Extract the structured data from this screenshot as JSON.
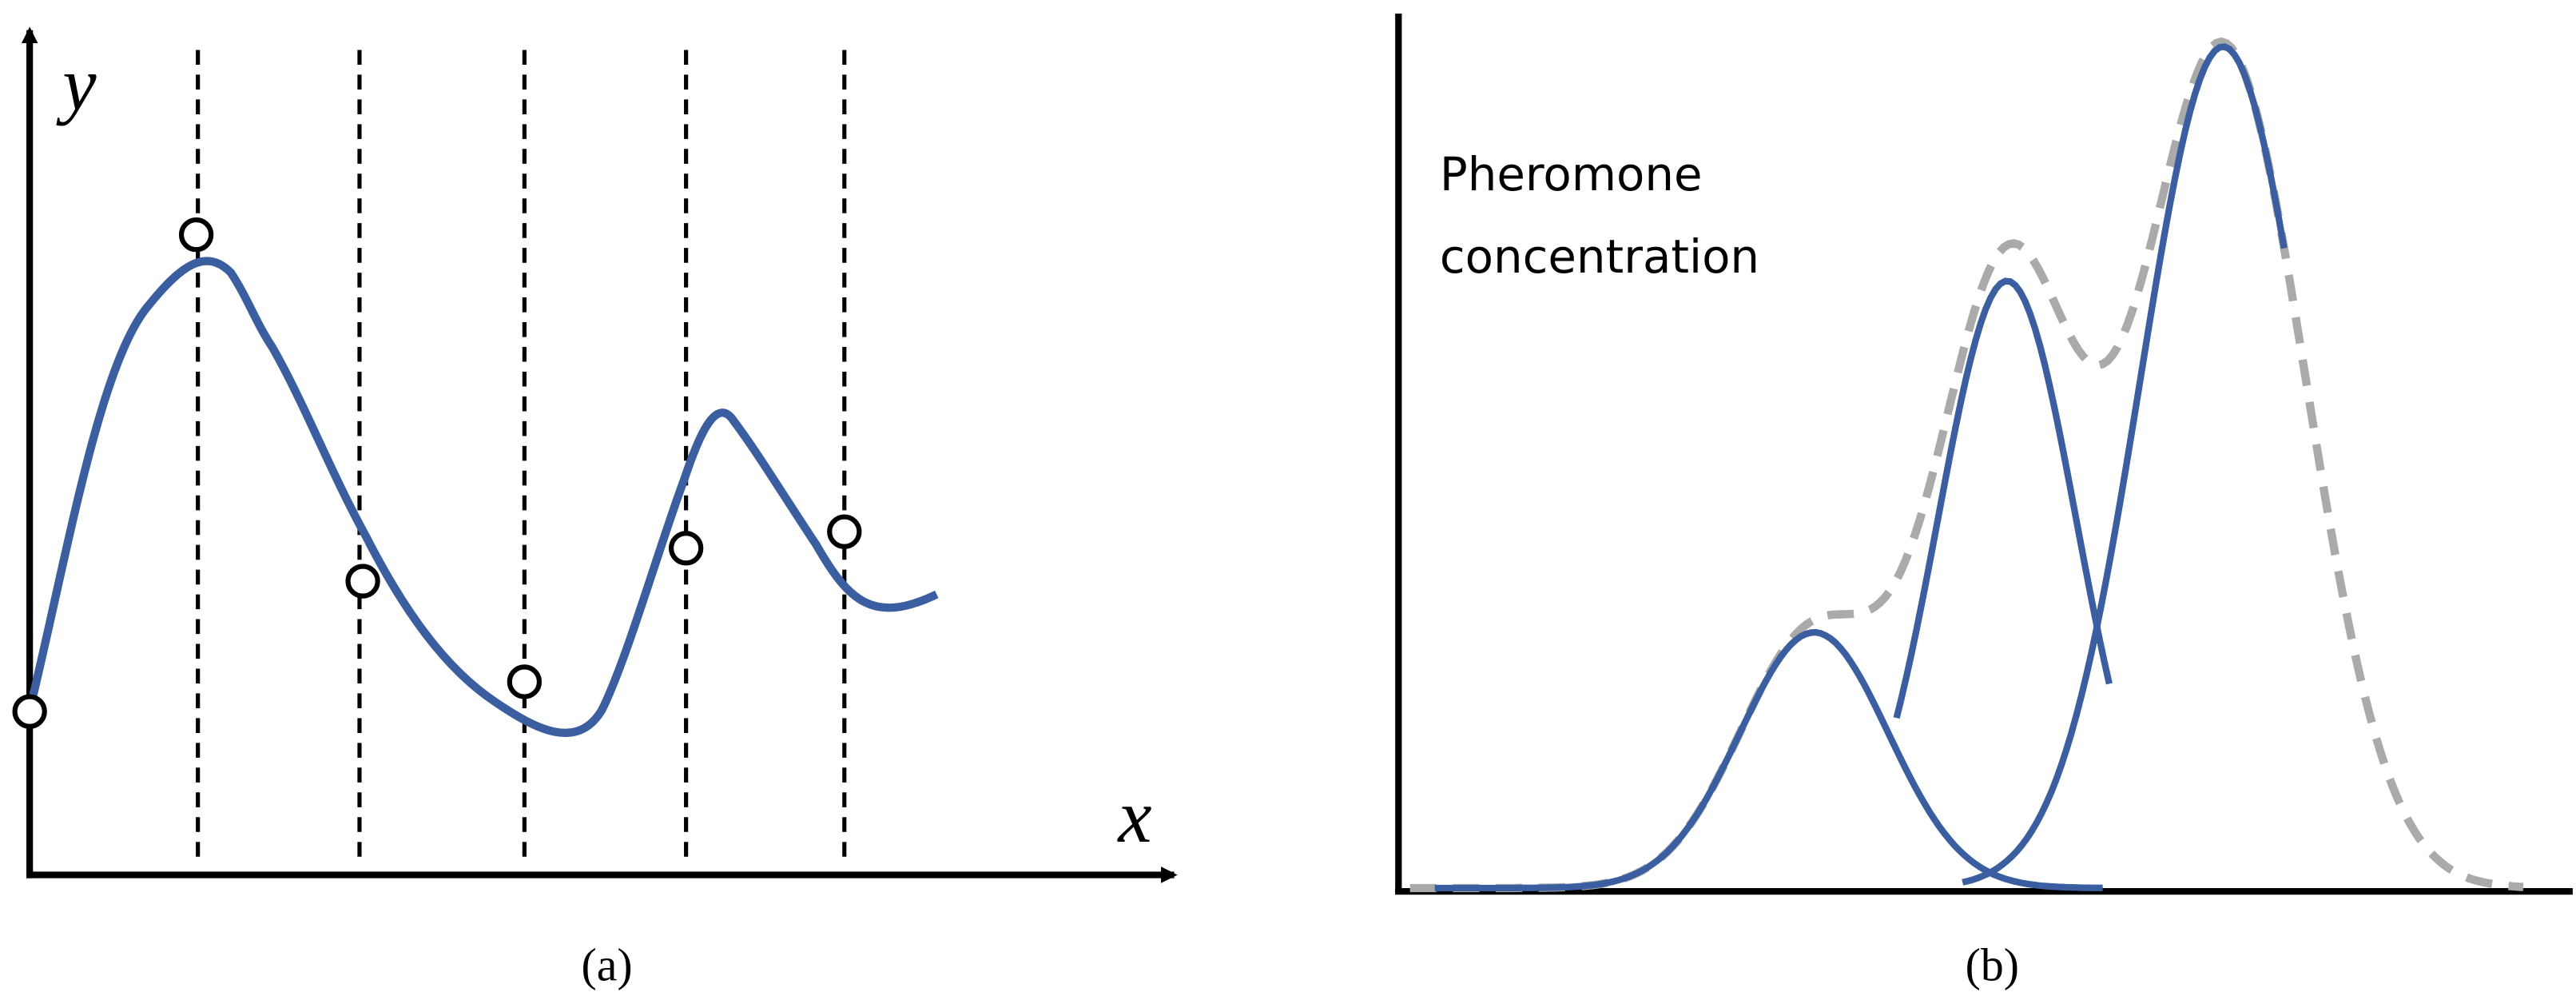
{
  "panel_a": {
    "y_label": "y",
    "x_label": "x",
    "caption": "(a)"
  },
  "panel_b": {
    "label_lines": [
      "Pheromone",
      "concentration"
    ],
    "caption": "(b)"
  }
}
